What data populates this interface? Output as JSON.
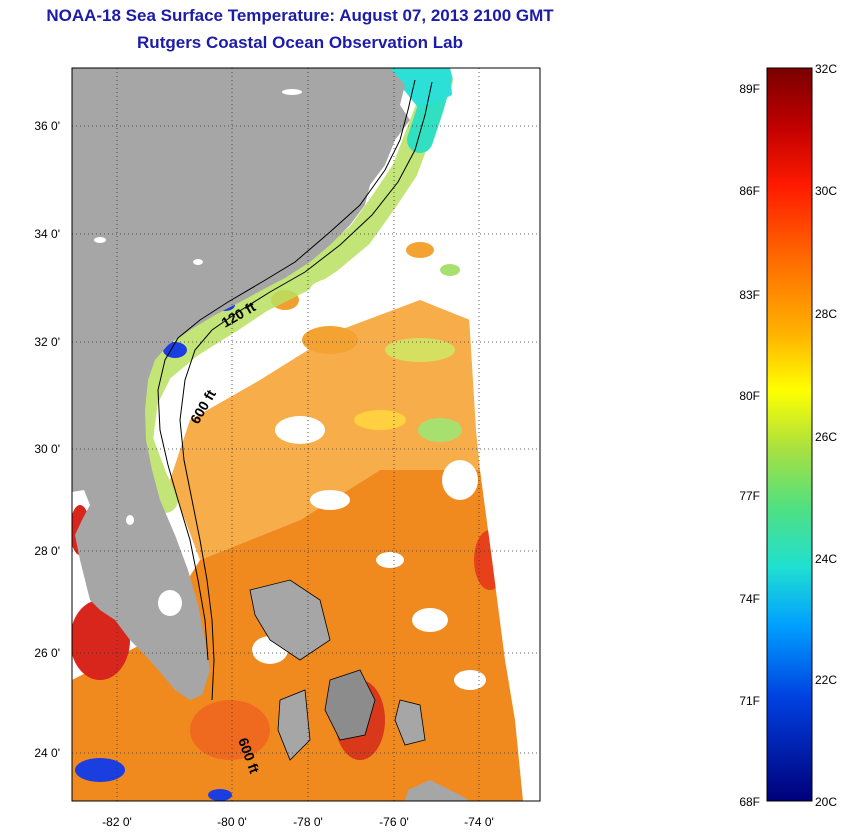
{
  "header": {
    "title": "NOAA-18 Sea Surface Temperature:  August 07, 2013 2100 GMT",
    "subtitle": "Rutgers Coastal Ocean Observation Lab"
  },
  "map": {
    "lat_labels": [
      "36 0'",
      "34 0'",
      "32 0'",
      "30 0'",
      "28 0'",
      "26 0'",
      "24 0'"
    ],
    "lon_labels": [
      "-82 0'",
      "-80 0'",
      "-78 0'",
      "-76 0'",
      "-74 0'"
    ],
    "isobath_labels": [
      "120 ft",
      "600 ft",
      "600 ft"
    ],
    "colors": {
      "land": "#a6a6a6",
      "no_data": "#ffffff"
    }
  },
  "colorbar": {
    "fahrenheit_labels": [
      "89F",
      "86F",
      "83F",
      "80F",
      "77F",
      "74F",
      "71F",
      "68F"
    ],
    "celsius_labels": [
      "32C",
      "30C",
      "28C",
      "26C",
      "24C",
      "22C",
      "20C"
    ],
    "range_c": [
      20,
      32
    ]
  }
}
